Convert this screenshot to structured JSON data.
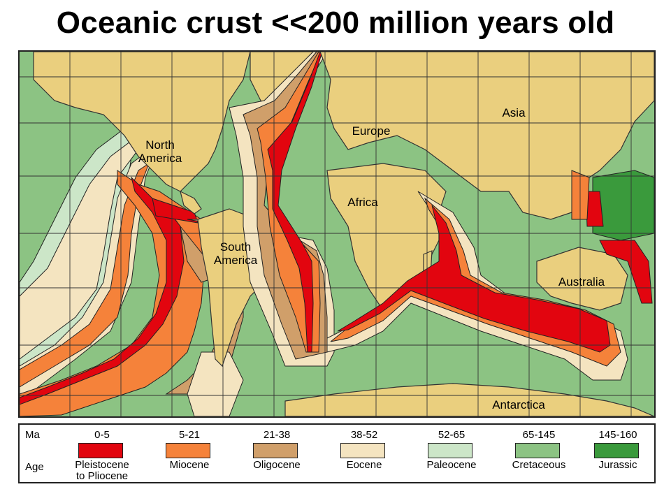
{
  "title": "Oceanic crust  <<200 million years old",
  "colors": {
    "ocean_base": "#8fb0d8",
    "land": "#eacf7e",
    "grid": "#333333",
    "coast": "#333333"
  },
  "map": {
    "labels": [
      {
        "id": "north-america",
        "text": "North\nAmerica"
      },
      {
        "id": "south-america",
        "text": "South\nAmerica"
      },
      {
        "id": "europe",
        "text": "Europe"
      },
      {
        "id": "asia",
        "text": "Asia"
      },
      {
        "id": "africa",
        "text": "Africa"
      },
      {
        "id": "australia",
        "text": "Australia"
      },
      {
        "id": "antarctica",
        "text": "Antarctica"
      }
    ]
  },
  "legend": {
    "ma_label": "Ma",
    "age_label": "Age",
    "items": [
      {
        "range": "0-5",
        "age": "Pleistocene\nto Pliocene",
        "color": "#e2050f"
      },
      {
        "range": "5-21",
        "age": "Miocene",
        "color": "#f5823a"
      },
      {
        "range": "21-38",
        "age": "Oligocene",
        "color": "#d09f6a"
      },
      {
        "range": "38-52",
        "age": "Eocene",
        "color": "#f4e4c0"
      },
      {
        "range": "52-65",
        "age": "Paleocene",
        "color": "#cce6c8"
      },
      {
        "range": "65-145",
        "age": "Cretaceous",
        "color": "#8cc383"
      },
      {
        "range": "145-160",
        "age": "Jurassic",
        "color": "#3a9a3c"
      }
    ]
  }
}
